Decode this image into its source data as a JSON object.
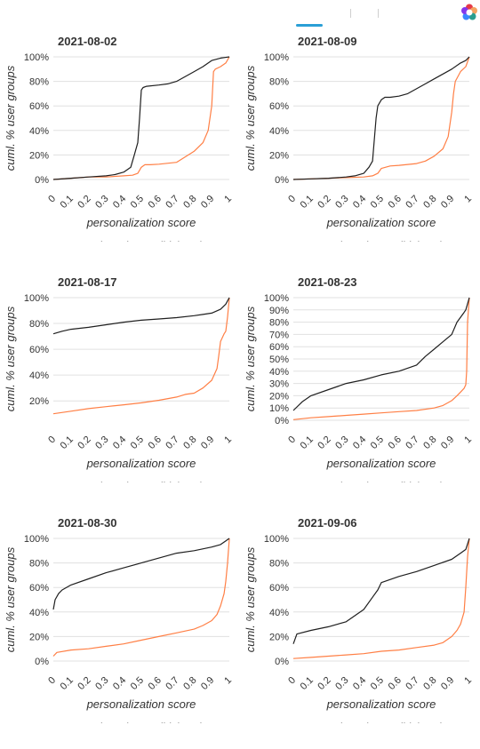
{
  "colors": {
    "activated": "#ff7f45",
    "didnt_activate": "#1f1f1f",
    "grid": "#e0e0e0",
    "tab_accent": "#2a9fd6"
  },
  "toolbar": {
    "logo_icon": "flower-logo-icon"
  },
  "chart_data": [
    {
      "type": "line",
      "title": "2021-08-02",
      "xlabel": "personalization score",
      "ylabel": "cuml. % user groups",
      "x_ticks": [
        "0",
        "0.1",
        "0.2",
        "0.3",
        "0.4",
        "0.5",
        "0.6",
        "0.7",
        "0.8",
        "0.9",
        "1"
      ],
      "y_ticks": [
        "0%",
        "20%",
        "40%",
        "60%",
        "80%",
        "100%"
      ],
      "ylim": [
        0,
        100
      ],
      "xlim": [
        0,
        1
      ],
      "grid": true,
      "legend": "bottom",
      "series": [
        {
          "name": "activated",
          "x": [
            0,
            0.1,
            0.2,
            0.3,
            0.4,
            0.45,
            0.48,
            0.5,
            0.52,
            0.55,
            0.6,
            0.7,
            0.8,
            0.85,
            0.88,
            0.9,
            0.91,
            0.92,
            0.95,
            0.98,
            1
          ],
          "y": [
            0,
            1,
            2,
            2,
            3,
            3.5,
            5,
            10,
            12,
            12,
            12.5,
            14,
            23,
            30,
            40,
            60,
            88,
            90,
            92,
            95,
            100
          ]
        },
        {
          "name": "didn't activate",
          "x": [
            0,
            0.1,
            0.2,
            0.3,
            0.35,
            0.4,
            0.44,
            0.46,
            0.48,
            0.49,
            0.5,
            0.51,
            0.53,
            0.6,
            0.65,
            0.7,
            0.75,
            0.8,
            0.85,
            0.9,
            0.95,
            1
          ],
          "y": [
            0,
            1,
            2,
            3,
            4,
            6,
            10,
            20,
            30,
            50,
            73,
            75,
            76,
            77,
            78,
            80,
            84,
            88,
            92,
            97,
            99,
            100
          ]
        }
      ]
    },
    {
      "type": "line",
      "title": "2021-08-09",
      "xlabel": "personalization score",
      "ylabel": "cuml. % user groups",
      "x_ticks": [
        "0",
        "0.1",
        "0.2",
        "0.3",
        "0.4",
        "0.5",
        "0.6",
        "0.7",
        "0.8",
        "0.9",
        "1"
      ],
      "y_ticks": [
        "0%",
        "20%",
        "40%",
        "60%",
        "80%",
        "100%"
      ],
      "ylim": [
        0,
        100
      ],
      "xlim": [
        0,
        1
      ],
      "grid": true,
      "legend": "bottom",
      "series": [
        {
          "name": "activated",
          "x": [
            0,
            0.1,
            0.2,
            0.3,
            0.4,
            0.45,
            0.48,
            0.5,
            0.55,
            0.6,
            0.7,
            0.75,
            0.8,
            0.85,
            0.88,
            0.9,
            0.91,
            0.92,
            0.95,
            0.98,
            1
          ],
          "y": [
            0,
            0.5,
            1,
            1.5,
            2,
            3,
            5,
            9,
            11,
            11.5,
            13,
            15,
            19,
            25,
            35,
            55,
            70,
            80,
            88,
            92,
            100
          ]
        },
        {
          "name": "didn't activate",
          "x": [
            0,
            0.1,
            0.2,
            0.3,
            0.35,
            0.4,
            0.43,
            0.45,
            0.47,
            0.48,
            0.5,
            0.52,
            0.55,
            0.6,
            0.65,
            0.7,
            0.75,
            0.8,
            0.85,
            0.9,
            0.95,
            0.98,
            1
          ],
          "y": [
            0,
            0.5,
            1,
            2,
            3,
            5,
            10,
            15,
            50,
            60,
            65,
            67,
            67,
            68,
            70,
            74,
            78,
            82,
            86,
            90,
            95,
            97,
            100
          ]
        }
      ]
    },
    {
      "type": "line",
      "title": "2021-08-17",
      "xlabel": "personalization score",
      "ylabel": "cuml. % user groups",
      "x_ticks": [
        "0",
        "0.1",
        "0.2",
        "0.3",
        "0.4",
        "0.5",
        "0.6",
        "0.7",
        "0.8",
        "0.9",
        "1"
      ],
      "y_ticks": [
        "20%",
        "40%",
        "60%",
        "80%",
        "100%"
      ],
      "ylim": [
        5,
        100
      ],
      "xlim": [
        0,
        1
      ],
      "grid": true,
      "legend": "bottom",
      "series": [
        {
          "name": "activated",
          "x": [
            0,
            0.1,
            0.2,
            0.3,
            0.4,
            0.5,
            0.6,
            0.7,
            0.75,
            0.8,
            0.85,
            0.9,
            0.93,
            0.94,
            0.95,
            0.97,
            0.98,
            0.99,
            1
          ],
          "y": [
            10,
            12,
            14,
            15.5,
            17,
            18.5,
            20.5,
            23,
            25,
            26,
            30,
            36,
            45,
            55,
            66,
            72,
            74,
            85,
            100
          ]
        },
        {
          "name": "didn't activate",
          "x": [
            0,
            0.05,
            0.1,
            0.2,
            0.3,
            0.4,
            0.5,
            0.6,
            0.7,
            0.8,
            0.85,
            0.9,
            0.95,
            0.98,
            1
          ],
          "y": [
            72,
            74,
            75.5,
            77,
            79,
            81,
            82.5,
            83.5,
            84.5,
            86,
            87,
            88,
            91,
            95,
            100
          ]
        }
      ]
    },
    {
      "type": "line",
      "title": "2021-08-23",
      "xlabel": "personalization score",
      "ylabel": "cuml. % user groups",
      "x_ticks": [
        "0",
        "0.1",
        "0.2",
        "0.3",
        "0.4",
        "0.5",
        "0.6",
        "0.7",
        "0.8",
        "0.9",
        "1"
      ],
      "y_ticks": [
        "0%",
        "10%",
        "20%",
        "30%",
        "40%",
        "50%",
        "60%",
        "70%",
        "80%",
        "90%",
        "100%"
      ],
      "ylim": [
        0,
        100
      ],
      "xlim": [
        0,
        1
      ],
      "grid": true,
      "legend": "bottom",
      "series": [
        {
          "name": "activated",
          "x": [
            0,
            0.1,
            0.2,
            0.3,
            0.4,
            0.5,
            0.6,
            0.7,
            0.8,
            0.85,
            0.9,
            0.93,
            0.95,
            0.97,
            0.98,
            0.985,
            0.99,
            1
          ],
          "y": [
            0.5,
            2,
            3,
            4,
            5,
            6,
            7,
            8,
            10,
            12,
            16,
            20,
            23,
            26,
            29,
            40,
            80,
            100
          ]
        },
        {
          "name": "didn't activate",
          "x": [
            0,
            0.05,
            0.1,
            0.2,
            0.3,
            0.4,
            0.5,
            0.6,
            0.7,
            0.75,
            0.8,
            0.85,
            0.9,
            0.93,
            0.95,
            0.97,
            0.98,
            0.99,
            1
          ],
          "y": [
            8,
            15,
            20,
            25,
            30,
            33,
            37,
            40,
            45,
            52,
            58,
            64,
            70,
            80,
            84,
            88,
            90,
            95,
            100
          ]
        }
      ]
    },
    {
      "type": "line",
      "title": "2021-08-30",
      "xlabel": "personalization score",
      "ylabel": "cuml. % user groups",
      "x_ticks": [
        "0",
        "0.1",
        "0.2",
        "0.3",
        "0.4",
        "0.5",
        "0.6",
        "0.7",
        "0.8",
        "0.9",
        "1"
      ],
      "y_ticks": [
        "0%",
        "20%",
        "40%",
        "60%",
        "80%",
        "100%"
      ],
      "ylim": [
        0,
        100
      ],
      "xlim": [
        0,
        1
      ],
      "grid": true,
      "legend": "bottom",
      "series": [
        {
          "name": "activated",
          "x": [
            0,
            0.02,
            0.1,
            0.2,
            0.3,
            0.4,
            0.5,
            0.6,
            0.7,
            0.8,
            0.85,
            0.9,
            0.93,
            0.95,
            0.97,
            0.98,
            0.99,
            1
          ],
          "y": [
            4,
            7,
            9,
            10,
            12,
            14,
            17,
            20,
            23,
            26,
            29,
            33,
            38,
            45,
            55,
            65,
            80,
            100
          ]
        },
        {
          "name": "didn't activate",
          "x": [
            0,
            0.01,
            0.03,
            0.05,
            0.1,
            0.2,
            0.3,
            0.4,
            0.5,
            0.6,
            0.65,
            0.7,
            0.8,
            0.9,
            0.95,
            1
          ],
          "y": [
            42,
            50,
            55,
            58,
            62,
            67,
            72,
            76,
            80,
            84,
            86,
            88,
            90,
            93,
            95,
            100
          ]
        }
      ]
    },
    {
      "type": "line",
      "title": "2021-09-06",
      "xlabel": "personalization score",
      "ylabel": "cuml. % user groups",
      "x_ticks": [
        "0",
        "0.1",
        "0.2",
        "0.3",
        "0.4",
        "0.5",
        "0.6",
        "0.7",
        "0.8",
        "0.9",
        "1"
      ],
      "y_ticks": [
        "0%",
        "20%",
        "40%",
        "60%",
        "80%",
        "100%"
      ],
      "ylim": [
        0,
        100
      ],
      "xlim": [
        0,
        1
      ],
      "grid": true,
      "legend": "bottom",
      "series": [
        {
          "name": "activated",
          "x": [
            0,
            0.1,
            0.2,
            0.3,
            0.4,
            0.5,
            0.6,
            0.7,
            0.8,
            0.85,
            0.9,
            0.93,
            0.95,
            0.97,
            0.98,
            0.99,
            1
          ],
          "y": [
            2,
            3,
            4,
            5,
            6,
            8,
            9,
            11,
            13,
            15,
            20,
            25,
            30,
            40,
            60,
            85,
            100
          ]
        },
        {
          "name": "didn't activate",
          "x": [
            0,
            0.02,
            0.1,
            0.2,
            0.3,
            0.35,
            0.4,
            0.45,
            0.48,
            0.5,
            0.52,
            0.6,
            0.7,
            0.8,
            0.9,
            0.95,
            0.98,
            1
          ],
          "y": [
            14,
            22,
            25,
            28,
            32,
            37,
            42,
            52,
            58,
            64,
            65,
            69,
            73,
            78,
            83,
            88,
            91,
            100
          ]
        }
      ]
    }
  ]
}
